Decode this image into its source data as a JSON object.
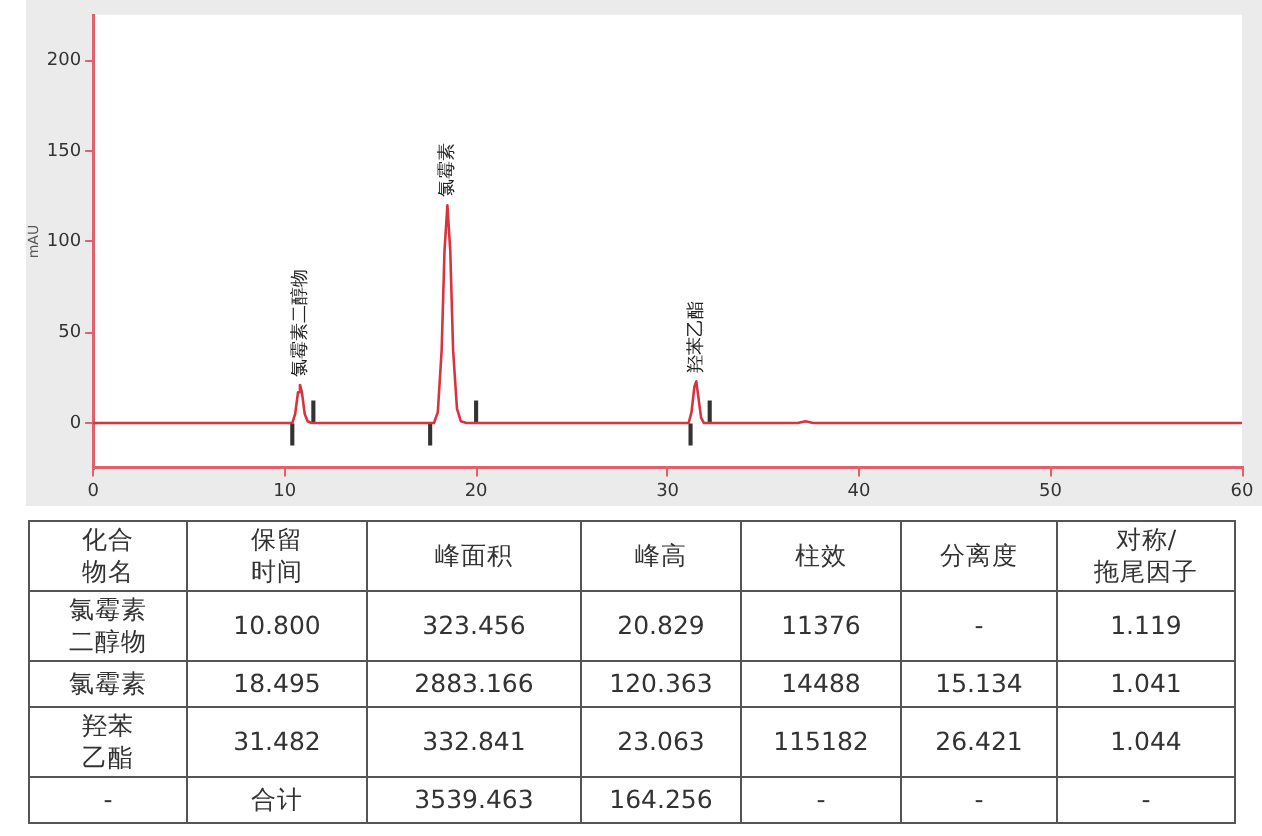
{
  "chart_data": [
    {
      "type": "line",
      "ylabel": "mAU",
      "xlim": [
        0,
        60
      ],
      "ylim": [
        -25,
        225
      ],
      "xticks": [
        0,
        10,
        20,
        30,
        40,
        50,
        60
      ],
      "yticks": [
        0,
        50,
        100,
        150,
        200
      ],
      "grid": false,
      "legend": false,
      "marker": "none",
      "line_style": "solid",
      "series": [
        {
          "type": "line",
          "color": "#d8343f",
          "x": [
            0,
            10.4,
            10.55,
            10.7,
            10.8,
            10.9,
            11.05,
            11.2,
            11.4,
            17.8,
            18.0,
            18.2,
            18.35,
            18.5,
            18.65,
            18.8,
            19.0,
            19.2,
            19.5,
            31.1,
            31.25,
            31.4,
            31.5,
            31.6,
            31.75,
            31.9,
            36.8,
            37.2,
            37.6,
            60
          ],
          "values": [
            0,
            0,
            5,
            17,
            21,
            17,
            5,
            1,
            0,
            0,
            6,
            40,
            95,
            120,
            95,
            40,
            8,
            1,
            0,
            0,
            6,
            20,
            23,
            15,
            3,
            0,
            0,
            1,
            0,
            0
          ]
        },
        {
          "type": "bar",
          "color": "#333333",
          "x": [
            10.4,
            11.5,
            17.6,
            20.0,
            31.2,
            32.2
          ],
          "values": [
            -12,
            12,
            -12,
            12,
            -12,
            12
          ]
        }
      ],
      "annotations": [
        {
          "text": "氯霉素二醇物",
          "x": 10.8,
          "y": 21
        },
        {
          "text": "氯霉素",
          "x": 18.5,
          "y": 120
        },
        {
          "text": "羟苯乙酯",
          "x": 31.5,
          "y": 23
        }
      ]
    },
    {
      "type": "other",
      "categories": [
        "化合物名",
        "保留时间",
        "峰面积",
        "峰高",
        "柱效",
        "分离度",
        "对称/拖尾因子"
      ],
      "cell_labels": [
        [
          "氯霉素二醇物",
          "10.800",
          "323.456",
          "20.829",
          "11376",
          "-",
          "1.119"
        ],
        [
          "氯霉素",
          "18.495",
          "2883.166",
          "120.363",
          "14488",
          "15.134",
          "1.041"
        ],
        [
          "羟苯乙酯",
          "31.482",
          "332.841",
          "23.063",
          "115182",
          "26.421",
          "1.044"
        ],
        [
          "-",
          "合计",
          "3539.463",
          "164.256",
          "-",
          "-",
          "-"
        ]
      ]
    }
  ]
}
